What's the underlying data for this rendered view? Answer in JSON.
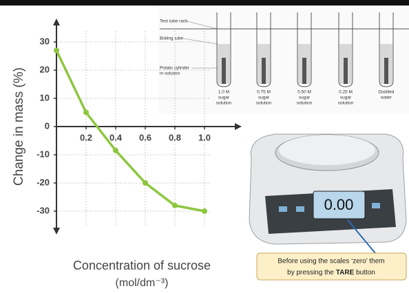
{
  "chart_data": {
    "type": "line",
    "ylabel": "Change in mass (%)",
    "xlabel": [
      "Concentration of sucrose",
      "(mol/dm⁻³)"
    ],
    "x": [
      0,
      0.2,
      0.4,
      0.6,
      0.8,
      1.0
    ],
    "values": [
      27,
      5,
      -8.5,
      -20,
      -28,
      -30
    ],
    "color": "#8dc63f",
    "xlim": [
      0,
      1.2
    ],
    "ylim": [
      -40,
      40
    ],
    "xticks": [
      0.2,
      0.4,
      0.6,
      0.8,
      {
        "value": 1,
        "label": "1.0"
      }
    ],
    "yticks": [
      30,
      20,
      10,
      0,
      -10,
      -20,
      -30
    ],
    "grid": true
  },
  "diagram": {
    "labels": [
      "Test tube rack",
      "Boiling tube",
      "Potato cylinder",
      "in solution"
    ],
    "tubes": [
      [
        "1.0 M",
        "sugar",
        "solution"
      ],
      [
        "0.75 M",
        "sugar",
        "solution"
      ],
      [
        "0.50 M",
        "sugar",
        "solution"
      ],
      [
        "0.25 M",
        "sugar",
        "solution"
      ],
      [
        "Distilled",
        "water"
      ]
    ]
  },
  "scale": {
    "display": "0.00",
    "callout": [
      "Before using the scales ‘zero’ them",
      "by pressing the ",
      "TARE",
      " button"
    ]
  }
}
